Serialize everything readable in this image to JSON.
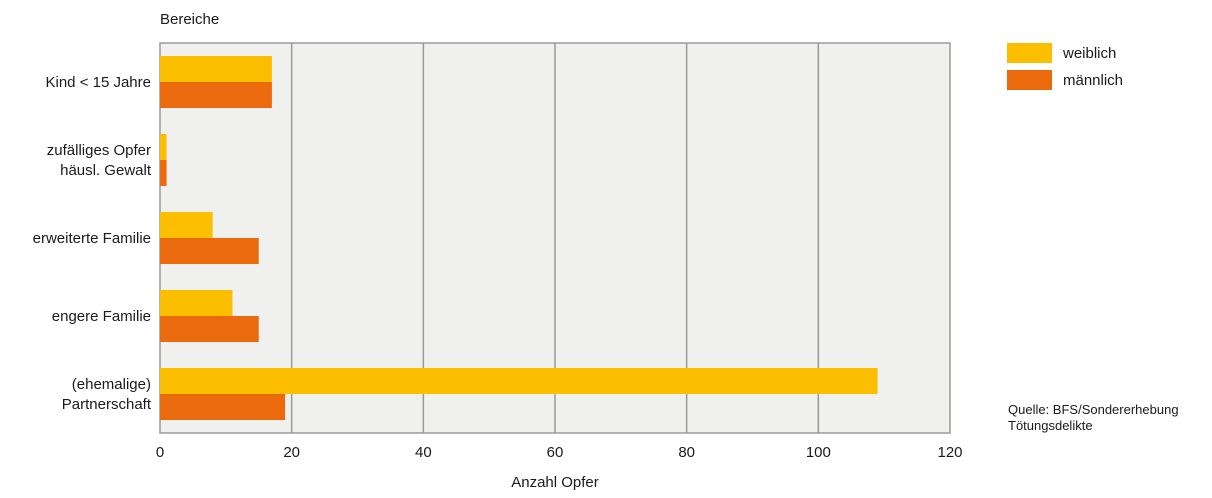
{
  "chart_data": {
    "type": "bar",
    "orientation": "horizontal",
    "y_axis_title": "Bereiche",
    "xlabel": "Anzahl Opfer",
    "xlim": [
      0,
      120
    ],
    "x_ticks": [
      0,
      20,
      40,
      60,
      80,
      100,
      120
    ],
    "grid": "vertical",
    "categories": [
      [
        "Kind < 15 Jahre"
      ],
      [
        "zufälliges Opfer",
        "häusl. Gewalt"
      ],
      [
        "erweiterte Familie"
      ],
      [
        "engere Familie"
      ],
      [
        "(ehemalige)",
        "Partnerschaft"
      ]
    ],
    "series": [
      {
        "name": "weiblich",
        "color": "#fbbf00",
        "values": [
          17,
          1,
          8,
          11,
          109
        ]
      },
      {
        "name": "männlich",
        "color": "#ec6a0e",
        "values": [
          17,
          1,
          15,
          15,
          19
        ]
      }
    ],
    "legend_position": "top-right",
    "source": [
      "Quelle: BFS/Sondererhebung",
      "Tötungsdelikte"
    ]
  }
}
